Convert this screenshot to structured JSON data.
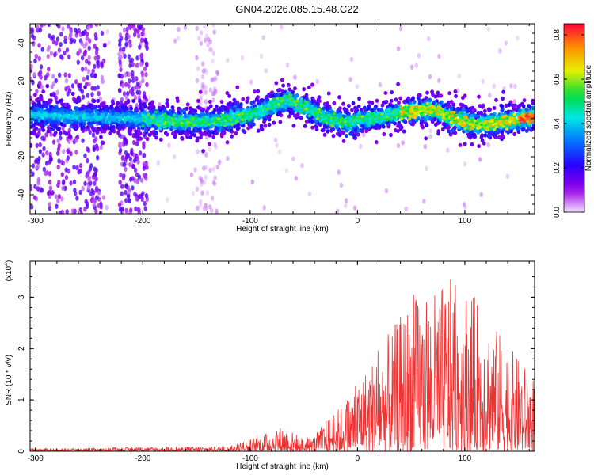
{
  "title": "GN04.2026.085.15.48.C22",
  "chart_data": [
    {
      "type": "heatmap",
      "xlabel": "Height of straight line (km)",
      "ylabel": "Frequency (Hz)",
      "xlim": [
        -305,
        165
      ],
      "ylim": [
        -50,
        50
      ],
      "x_ticks": [
        -300,
        -200,
        -100,
        0,
        100
      ],
      "x_tick_labels": [
        "-300",
        "-200",
        "-100",
        "0",
        "100"
      ],
      "y_ticks": [
        -40,
        -20,
        0,
        20,
        40
      ],
      "y_tick_labels": [
        "-40",
        "-20",
        "0",
        "20",
        "40"
      ],
      "colorbar": {
        "label": "Normalized spectral amplitude",
        "range": [
          0,
          0.85
        ],
        "ticks": [
          0.0,
          0.2,
          0.4,
          0.6,
          0.8
        ],
        "tick_labels": [
          "0.0",
          "0.2",
          "0.4",
          "0.6",
          "0.8"
        ]
      },
      "ridge": {
        "x": [
          -300,
          -250,
          -200,
          -160,
          -130,
          -100,
          -80,
          -65,
          -50,
          -30,
          -10,
          10,
          30,
          50,
          70,
          90,
          110,
          130,
          150,
          165
        ],
        "y": [
          2,
          1,
          0,
          -2,
          -1,
          2,
          7,
          10,
          6,
          1,
          -2,
          0,
          2,
          4,
          5,
          0,
          -3,
          -2,
          0,
          1
        ]
      }
    },
    {
      "type": "line",
      "xlabel": "Height of straight line (km)",
      "ylabel": "SNR (10 * v/v)",
      "y_multiplier": "(x10",
      "y_multiplier_exp": "4",
      "multiplier_close": ")",
      "xlim": [
        -305,
        165
      ],
      "ylim": [
        0,
        3.7
      ],
      "x_ticks": [
        -300,
        -200,
        -100,
        0,
        100
      ],
      "x_tick_labels": [
        "-300",
        "-200",
        "-100",
        "0",
        "100"
      ],
      "y_ticks": [
        0,
        1,
        2,
        3
      ],
      "y_tick_labels": [
        "0",
        "1",
        "2",
        "3"
      ],
      "series": [
        {
          "color": "#ee3333",
          "envelope_x": [
            -305,
            -200,
            -120,
            -90,
            -70,
            -50,
            -40,
            -30,
            -20,
            -10,
            0,
            20,
            35,
            50,
            70,
            90,
            110,
            130,
            150,
            165
          ],
          "envelope_y": [
            0.05,
            0.08,
            0.1,
            0.3,
            0.5,
            0.25,
            0.3,
            0.6,
            0.8,
            1.0,
            1.4,
            2.0,
            2.5,
            3.0,
            3.1,
            3.4,
            3.0,
            2.4,
            1.8,
            1.5
          ]
        }
      ]
    }
  ]
}
